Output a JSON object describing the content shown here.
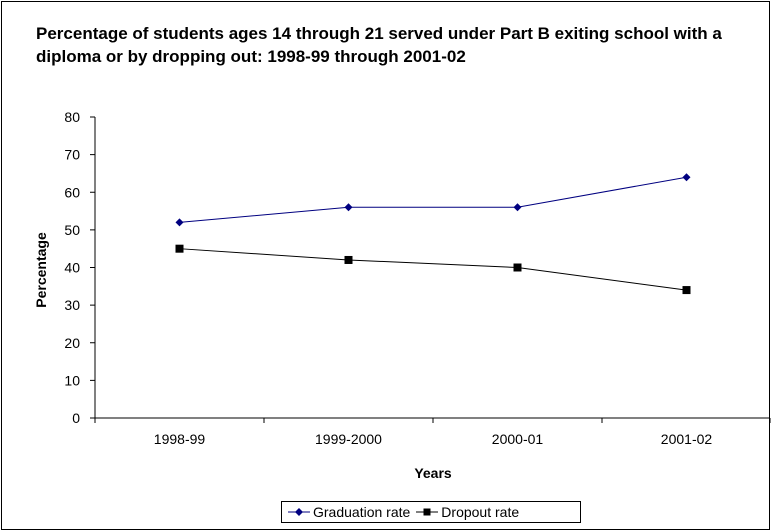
{
  "chart_data": {
    "type": "line",
    "title": "Percentage of students ages 14 through 21 served under Part B exiting school with a diploma or by dropping out: 1998-99 through 2001-02",
    "xlabel": "Years",
    "ylabel": "Percentage",
    "categories": [
      "1998-99",
      "1999-2000",
      "2000-01",
      "2001-02"
    ],
    "ylim": [
      0,
      80
    ],
    "yticks": [
      "0",
      "10",
      "20",
      "30",
      "40",
      "50",
      "60",
      "70",
      "80"
    ],
    "grid": false,
    "legend_position": "bottom",
    "series": [
      {
        "name": "Graduation rate",
        "values": [
          52,
          56,
          56,
          64
        ],
        "color": "#000080",
        "marker": "diamond"
      },
      {
        "name": "Dropout rate",
        "values": [
          45,
          42,
          40,
          34
        ],
        "color": "#000000",
        "marker": "square"
      }
    ]
  }
}
